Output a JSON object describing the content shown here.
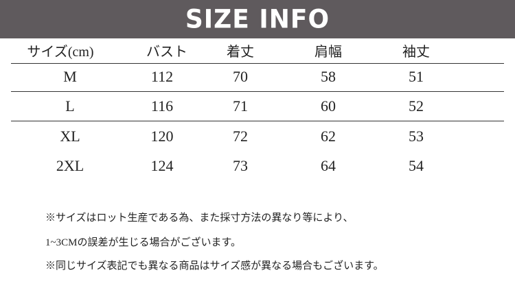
{
  "title": "SIZE INFO",
  "table": {
    "headers": [
      "サイズ(cm)",
      "バスト",
      "着丈",
      "肩幅",
      "袖丈"
    ],
    "rows": [
      [
        "M",
        "112",
        "70",
        "58",
        "51"
      ],
      [
        "L",
        "116",
        "71",
        "60",
        "52"
      ],
      [
        "XL",
        "120",
        "72",
        "62",
        "53"
      ],
      [
        "2XL",
        "124",
        "73",
        "64",
        "54"
      ]
    ]
  },
  "notes": [
    "※サイズはロット生産である為、また採寸方法の異なり等により、",
    "1~3CMの誤差が生じる場合がございます。",
    "※同じサイズ表記でも異なる商品はサイズ感が異なる場合もございます。"
  ],
  "colors": {
    "banner": "#5f5a5d",
    "banner_text": "#ffffff"
  }
}
